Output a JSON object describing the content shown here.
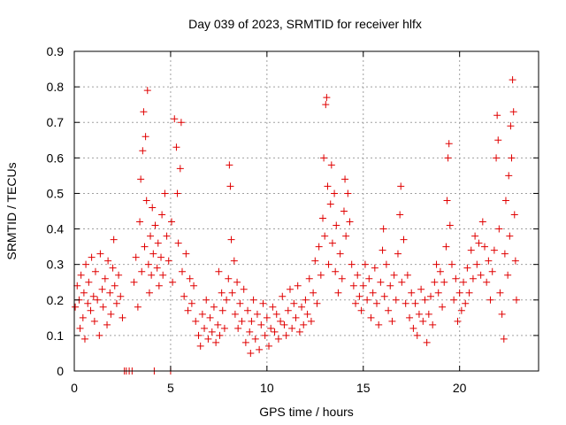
{
  "chart_data": {
    "type": "scatter",
    "title": "Day 039 of 2023, SRMTID for receiver hlfx",
    "xlabel": "GPS time / hours",
    "ylabel": "SRMTID / TECUs",
    "xlim": [
      0,
      24.1
    ],
    "ylim": [
      0,
      0.9
    ],
    "x_ticks": [
      0,
      5,
      10,
      15,
      20
    ],
    "y_ticks": [
      0,
      0.1,
      0.2,
      0.3,
      0.4,
      0.5,
      0.6,
      0.7,
      0.8,
      0.9
    ],
    "x_tick_labels": [
      "0",
      "5",
      "10",
      "15",
      "20"
    ],
    "y_tick_labels": [
      "0",
      "0.1",
      "0.2",
      "0.3",
      "0.4",
      "0.5",
      "0.6",
      "0.7",
      "0.8",
      "0.9"
    ],
    "grid": true,
    "marker": "+",
    "color": "#e00000",
    "series": [
      {
        "name": "SRMTID",
        "points": [
          [
            0.05,
            0.18
          ],
          [
            0.15,
            0.24
          ],
          [
            0.25,
            0.2
          ],
          [
            0.3,
            0.12
          ],
          [
            0.35,
            0.27
          ],
          [
            0.45,
            0.15
          ],
          [
            0.5,
            0.22
          ],
          [
            0.55,
            0.09
          ],
          [
            0.6,
            0.3
          ],
          [
            0.7,
            0.19
          ],
          [
            0.75,
            0.25
          ],
          [
            0.85,
            0.17
          ],
          [
            0.9,
            0.32
          ],
          [
            1.0,
            0.21
          ],
          [
            1.05,
            0.14
          ],
          [
            1.1,
            0.28
          ],
          [
            1.2,
            0.2
          ],
          [
            1.3,
            0.1
          ],
          [
            1.35,
            0.33
          ],
          [
            1.45,
            0.23
          ],
          [
            1.5,
            0.18
          ],
          [
            1.6,
            0.26
          ],
          [
            1.7,
            0.13
          ],
          [
            1.75,
            0.31
          ],
          [
            1.85,
            0.22
          ],
          [
            1.9,
            0.16
          ],
          [
            2.0,
            0.29
          ],
          [
            2.05,
            0.37
          ],
          [
            2.1,
            0.24
          ],
          [
            2.2,
            0.19
          ],
          [
            2.3,
            0.27
          ],
          [
            2.4,
            0.21
          ],
          [
            2.5,
            0.15
          ],
          [
            2.6,
            0.0
          ],
          [
            2.7,
            0.0
          ],
          [
            2.85,
            0.0
          ],
          [
            3.0,
            0.0
          ],
          [
            3.1,
            0.25
          ],
          [
            3.2,
            0.32
          ],
          [
            3.3,
            0.18
          ],
          [
            3.4,
            0.42
          ],
          [
            3.45,
            0.54
          ],
          [
            3.5,
            0.28
          ],
          [
            3.55,
            0.62
          ],
          [
            3.6,
            0.73
          ],
          [
            3.65,
            0.35
          ],
          [
            3.7,
            0.66
          ],
          [
            3.75,
            0.48
          ],
          [
            3.8,
            0.79
          ],
          [
            3.85,
            0.3
          ],
          [
            3.9,
            0.22
          ],
          [
            3.95,
            0.38
          ],
          [
            4.0,
            0.27
          ],
          [
            4.05,
            0.46
          ],
          [
            4.1,
            0.33
          ],
          [
            4.15,
            0.0
          ],
          [
            4.2,
            0.41
          ],
          [
            4.3,
            0.29
          ],
          [
            4.35,
            0.36
          ],
          [
            4.4,
            0.24
          ],
          [
            4.5,
            0.32
          ],
          [
            4.55,
            0.44
          ],
          [
            4.6,
            0.27
          ],
          [
            4.7,
            0.5
          ],
          [
            4.8,
            0.38
          ],
          [
            4.9,
            0.31
          ],
          [
            5.0,
            0.0
          ],
          [
            5.05,
            0.42
          ],
          [
            5.1,
            0.25
          ],
          [
            5.2,
            0.71
          ],
          [
            5.3,
            0.63
          ],
          [
            5.35,
            0.5
          ],
          [
            5.4,
            0.36
          ],
          [
            5.5,
            0.57
          ],
          [
            5.55,
            0.7
          ],
          [
            5.6,
            0.28
          ],
          [
            5.7,
            0.21
          ],
          [
            5.8,
            0.33
          ],
          [
            5.9,
            0.17
          ],
          [
            6.0,
            0.26
          ],
          [
            6.1,
            0.19
          ],
          [
            6.2,
            0.24
          ],
          [
            6.3,
            0.14
          ],
          [
            6.45,
            0.1
          ],
          [
            6.55,
            0.07
          ],
          [
            6.65,
            0.16
          ],
          [
            6.75,
            0.12
          ],
          [
            6.85,
            0.2
          ],
          [
            6.95,
            0.09
          ],
          [
            7.05,
            0.15
          ],
          [
            7.15,
            0.11
          ],
          [
            7.25,
            0.18
          ],
          [
            7.35,
            0.08
          ],
          [
            7.45,
            0.13
          ],
          [
            7.5,
            0.28
          ],
          [
            7.55,
            0.1
          ],
          [
            7.65,
            0.22
          ],
          [
            7.7,
            0.17
          ],
          [
            7.8,
            0.12
          ],
          [
            7.9,
            0.2
          ],
          [
            8.0,
            0.26
          ],
          [
            8.05,
            0.58
          ],
          [
            8.1,
            0.52
          ],
          [
            8.15,
            0.37
          ],
          [
            8.2,
            0.22
          ],
          [
            8.3,
            0.31
          ],
          [
            8.35,
            0.16
          ],
          [
            8.45,
            0.25
          ],
          [
            8.5,
            0.12
          ],
          [
            8.6,
            0.19
          ],
          [
            8.7,
            0.14
          ],
          [
            8.8,
            0.23
          ],
          [
            8.9,
            0.08
          ],
          [
            9.0,
            0.17
          ],
          [
            9.1,
            0.11
          ],
          [
            9.15,
            0.05
          ],
          [
            9.2,
            0.14
          ],
          [
            9.3,
            0.2
          ],
          [
            9.4,
            0.09
          ],
          [
            9.5,
            0.16
          ],
          [
            9.6,
            0.06
          ],
          [
            9.7,
            0.13
          ],
          [
            9.8,
            0.19
          ],
          [
            9.9,
            0.1
          ],
          [
            10.0,
            0.15
          ],
          [
            10.1,
            0.07
          ],
          [
            10.2,
            0.12
          ],
          [
            10.3,
            0.18
          ],
          [
            10.4,
            0.11
          ],
          [
            10.5,
            0.16
          ],
          [
            10.6,
            0.09
          ],
          [
            10.7,
            0.14
          ],
          [
            10.8,
            0.21
          ],
          [
            10.9,
            0.13
          ],
          [
            11.0,
            0.1
          ],
          [
            11.1,
            0.17
          ],
          [
            11.2,
            0.23
          ],
          [
            11.3,
            0.12
          ],
          [
            11.4,
            0.19
          ],
          [
            11.5,
            0.15
          ],
          [
            11.6,
            0.24
          ],
          [
            11.7,
            0.11
          ],
          [
            11.8,
            0.18
          ],
          [
            11.9,
            0.13
          ],
          [
            12.0,
            0.2
          ],
          [
            12.1,
            0.16
          ],
          [
            12.2,
            0.26
          ],
          [
            12.3,
            0.14
          ],
          [
            12.4,
            0.22
          ],
          [
            12.5,
            0.31
          ],
          [
            12.6,
            0.19
          ],
          [
            12.7,
            0.35
          ],
          [
            12.8,
            0.27
          ],
          [
            12.9,
            0.43
          ],
          [
            12.95,
            0.6
          ],
          [
            13.0,
            0.38
          ],
          [
            13.05,
            0.75
          ],
          [
            13.1,
            0.77
          ],
          [
            13.15,
            0.52
          ],
          [
            13.2,
            0.3
          ],
          [
            13.3,
            0.47
          ],
          [
            13.35,
            0.58
          ],
          [
            13.4,
            0.36
          ],
          [
            13.5,
            0.5
          ],
          [
            13.55,
            0.28
          ],
          [
            13.6,
            0.41
          ],
          [
            13.7,
            0.22
          ],
          [
            13.8,
            0.33
          ],
          [
            13.9,
            0.26
          ],
          [
            14.0,
            0.45
          ],
          [
            14.05,
            0.54
          ],
          [
            14.1,
            0.38
          ],
          [
            14.2,
            0.5
          ],
          [
            14.3,
            0.42
          ],
          [
            14.4,
            0.3
          ],
          [
            14.5,
            0.24
          ],
          [
            14.6,
            0.19
          ],
          [
            14.7,
            0.27
          ],
          [
            14.8,
            0.21
          ],
          [
            14.9,
            0.17
          ],
          [
            15.0,
            0.24
          ],
          [
            15.1,
            0.3
          ],
          [
            15.2,
            0.2
          ],
          [
            15.3,
            0.26
          ],
          [
            15.4,
            0.15
          ],
          [
            15.5,
            0.22
          ],
          [
            15.6,
            0.29
          ],
          [
            15.7,
            0.19
          ],
          [
            15.8,
            0.13
          ],
          [
            15.9,
            0.25
          ],
          [
            16.0,
            0.34
          ],
          [
            16.05,
            0.4
          ],
          [
            16.1,
            0.21
          ],
          [
            16.2,
            0.3
          ],
          [
            16.3,
            0.17
          ],
          [
            16.4,
            0.24
          ],
          [
            16.5,
            0.14
          ],
          [
            16.6,
            0.27
          ],
          [
            16.7,
            0.2
          ],
          [
            16.8,
            0.33
          ],
          [
            16.9,
            0.44
          ],
          [
            16.95,
            0.52
          ],
          [
            17.0,
            0.25
          ],
          [
            17.1,
            0.37
          ],
          [
            17.2,
            0.19
          ],
          [
            17.3,
            0.27
          ],
          [
            17.4,
            0.15
          ],
          [
            17.5,
            0.22
          ],
          [
            17.6,
            0.12
          ],
          [
            17.7,
            0.19
          ],
          [
            17.8,
            0.1
          ],
          [
            17.9,
            0.16
          ],
          [
            18.0,
            0.23
          ],
          [
            18.1,
            0.14
          ],
          [
            18.2,
            0.2
          ],
          [
            18.3,
            0.08
          ],
          [
            18.4,
            0.16
          ],
          [
            18.5,
            0.21
          ],
          [
            18.6,
            0.13
          ],
          [
            18.7,
            0.25
          ],
          [
            18.8,
            0.3
          ],
          [
            18.9,
            0.22
          ],
          [
            19.0,
            0.28
          ],
          [
            19.1,
            0.18
          ],
          [
            19.2,
            0.25
          ],
          [
            19.3,
            0.35
          ],
          [
            19.35,
            0.48
          ],
          [
            19.4,
            0.6
          ],
          [
            19.45,
            0.64
          ],
          [
            19.5,
            0.41
          ],
          [
            19.6,
            0.3
          ],
          [
            19.7,
            0.2
          ],
          [
            19.8,
            0.26
          ],
          [
            19.9,
            0.14
          ],
          [
            20.0,
            0.22
          ],
          [
            20.1,
            0.17
          ],
          [
            20.2,
            0.25
          ],
          [
            20.3,
            0.19
          ],
          [
            20.4,
            0.29
          ],
          [
            20.5,
            0.22
          ],
          [
            20.6,
            0.34
          ],
          [
            20.7,
            0.26
          ],
          [
            20.8,
            0.38
          ],
          [
            20.9,
            0.3
          ],
          [
            21.0,
            0.36
          ],
          [
            21.1,
            0.27
          ],
          [
            21.2,
            0.42
          ],
          [
            21.3,
            0.35
          ],
          [
            21.4,
            0.25
          ],
          [
            21.5,
            0.31
          ],
          [
            21.6,
            0.2
          ],
          [
            21.7,
            0.28
          ],
          [
            21.8,
            0.34
          ],
          [
            21.9,
            0.6
          ],
          [
            21.95,
            0.72
          ],
          [
            22.0,
            0.65
          ],
          [
            22.05,
            0.4
          ],
          [
            22.1,
            0.22
          ],
          [
            22.2,
            0.16
          ],
          [
            22.3,
            0.09
          ],
          [
            22.35,
            0.33
          ],
          [
            22.4,
            0.48
          ],
          [
            22.5,
            0.27
          ],
          [
            22.55,
            0.55
          ],
          [
            22.6,
            0.38
          ],
          [
            22.65,
            0.69
          ],
          [
            22.7,
            0.6
          ],
          [
            22.75,
            0.82
          ],
          [
            22.8,
            0.73
          ],
          [
            22.85,
            0.44
          ],
          [
            22.9,
            0.31
          ],
          [
            22.95,
            0.2
          ]
        ]
      }
    ]
  }
}
